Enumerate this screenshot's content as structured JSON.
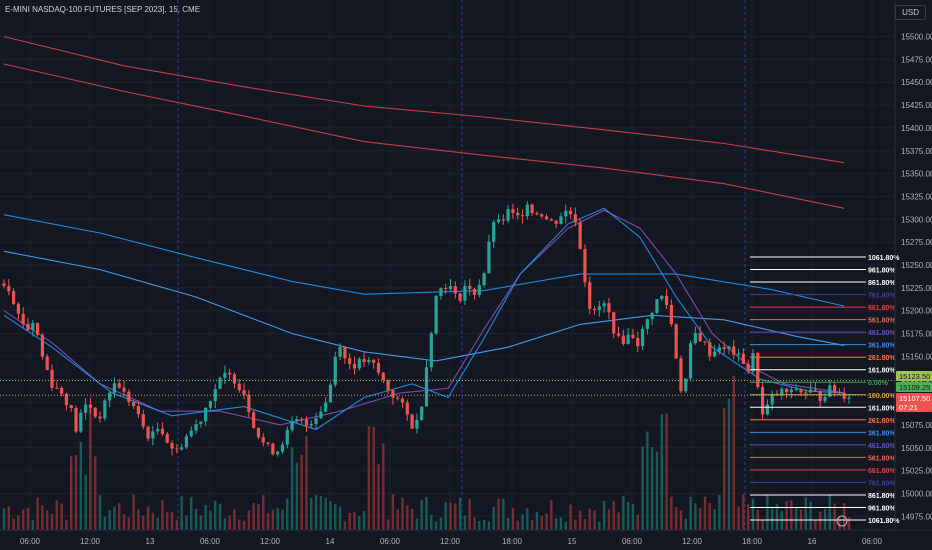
{
  "header": {
    "title": "E-MINI NASDAQ-100 FUTURES [SEP 2023], 15, CME",
    "currency": "USD"
  },
  "colors": {
    "background": "#131722",
    "grid": "#1e222d",
    "text": "#b2b5be",
    "up": "#26a69a",
    "down": "#ef5350",
    "vol_up": "#1b6b64",
    "vol_down": "#8e3434",
    "ma_red": "#d9434a",
    "ma_blue": "#2196f3",
    "ma_purple": "#8b4fc0",
    "ma_light_blue": "#4fa6ff",
    "session_line": "#2962ff",
    "dotted_green": "#9cc452",
    "dotted_orange": "#c9a35a"
  },
  "price_scale": {
    "labels": [
      "15500.00",
      "15475.00",
      "15450.00",
      "15425.00",
      "15400.00",
      "15375.00",
      "15350.00",
      "15325.00",
      "15300.00",
      "15275.00",
      "15250.00",
      "15225.00",
      "15200.00",
      "15175.00",
      "15150.00",
      "15125.00",
      "15100.00",
      "15075.00",
      "15050.00",
      "15025.00",
      "15000.00",
      "14975.00"
    ],
    "price_tags": [
      {
        "text": "15123.50",
        "bg": "#9cc452",
        "fg": "#131722"
      },
      {
        "text": "15109.25",
        "bg": "#4caf50",
        "fg": "#131722"
      },
      {
        "text": "15107.50",
        "bg": "#ef5350",
        "fg": "#ffffff"
      },
      {
        "text": "07:21",
        "bg": "#ef5350",
        "fg": "#ffffff"
      }
    ]
  },
  "time_scale": {
    "labels": [
      "06:00",
      "12:00",
      "13",
      "06:00",
      "12:00",
      "14",
      "06:00",
      "12:00",
      "18:00",
      "15",
      "06:00",
      "12:00",
      "18:00",
      "16",
      "06:00"
    ]
  },
  "fib_levels": [
    {
      "label": "1061.80%",
      "color": "#ffffff"
    },
    {
      "label": "961.80%",
      "color": "#ffffff"
    },
    {
      "label": "861.80%",
      "color": "#ffffff"
    },
    {
      "label": "761.80%",
      "color": "#3f3f9e"
    },
    {
      "label": "661.80%",
      "color": "#e04040"
    },
    {
      "label": "561.80%",
      "color": "#e86a5a"
    },
    {
      "label": "461.80%",
      "color": "#6a4fc7"
    },
    {
      "label": "361.80%",
      "color": "#3c8ee8"
    },
    {
      "label": "261.80%",
      "color": "#ff7043"
    },
    {
      "label": "161.80%",
      "color": "#ffffff"
    },
    {
      "label": "0.00%",
      "color": "#43a047"
    },
    {
      "label": "100.00%",
      "color": "#d9a441"
    },
    {
      "label": "161.80%",
      "color": "#ffffff"
    },
    {
      "label": "261.80%",
      "color": "#ff7043"
    },
    {
      "label": "361.80%",
      "color": "#3c8ee8"
    },
    {
      "label": "461.80%",
      "color": "#6a4fc7"
    },
    {
      "label": "561.80%",
      "color": "#e86a5a"
    },
    {
      "label": "661.80%",
      "color": "#e04040"
    },
    {
      "label": "761.80%",
      "color": "#3f3f9e"
    },
    {
      "label": "861.80%",
      "color": "#ffffff"
    },
    {
      "label": "961.80%",
      "color": "#ffffff"
    },
    {
      "label": "1061.80%",
      "color": "#ffffff"
    }
  ],
  "chart_data": {
    "type": "candlestick",
    "title": "E-MINI NASDAQ-100 FUTURES [SEP 2023], 15, CME",
    "ylim": [
      14960,
      15540
    ],
    "x_labels": [
      "06:00",
      "12:00",
      "13",
      "06:00",
      "12:00",
      "14",
      "06:00",
      "12:00",
      "18:00",
      "15",
      "06:00",
      "12:00",
      "18:00",
      "16",
      "06:00"
    ],
    "price_path": [
      [
        0,
        15230
      ],
      [
        5,
        15225
      ],
      [
        12,
        15195
      ],
      [
        20,
        15180
      ],
      [
        25,
        15190
      ],
      [
        32,
        15150
      ],
      [
        40,
        15120
      ],
      [
        48,
        15110
      ],
      [
        55,
        15095
      ],
      [
        60,
        15070
      ],
      [
        65,
        15090
      ],
      [
        70,
        15100
      ],
      [
        78,
        15080
      ],
      [
        85,
        15100
      ],
      [
        90,
        15120
      ],
      [
        96,
        15118
      ],
      [
        102,
        15105
      ],
      [
        108,
        15095
      ],
      [
        115,
        15075
      ],
      [
        122,
        15060
      ],
      [
        130,
        15075
      ],
      [
        137,
        15055
      ],
      [
        144,
        15045
      ],
      [
        150,
        15060
      ],
      [
        157,
        15070
      ],
      [
        163,
        15080
      ],
      [
        170,
        15100
      ],
      [
        178,
        15120
      ],
      [
        185,
        15130
      ],
      [
        192,
        15125
      ],
      [
        200,
        15110
      ],
      [
        207,
        15080
      ],
      [
        213,
        15060
      ],
      [
        220,
        15050
      ],
      [
        227,
        15045
      ],
      [
        233,
        15060
      ],
      [
        240,
        15075
      ],
      [
        245,
        15080
      ],
      [
        252,
        15075
      ],
      [
        260,
        15085
      ],
      [
        268,
        15100
      ],
      [
        275,
        15135
      ],
      [
        278,
        15180
      ],
      [
        282,
        15150
      ],
      [
        290,
        15140
      ],
      [
        300,
        15145
      ],
      [
        308,
        15140
      ],
      [
        315,
        15125
      ],
      [
        322,
        15110
      ],
      [
        330,
        15100
      ],
      [
        336,
        15085
      ],
      [
        342,
        15070
      ],
      [
        347,
        15090
      ],
      [
        352,
        15140
      ],
      [
        356,
        15180
      ],
      [
        360,
        15215
      ],
      [
        366,
        15230
      ],
      [
        372,
        15225
      ],
      [
        378,
        15210
      ],
      [
        385,
        15230
      ],
      [
        390,
        15215
      ],
      [
        396,
        15230
      ],
      [
        401,
        15245
      ],
      [
        405,
        15280
      ],
      [
        409,
        15305
      ],
      [
        412,
        15295
      ],
      [
        416,
        15300
      ],
      [
        421,
        15310
      ],
      [
        426,
        15300
      ],
      [
        431,
        15305
      ],
      [
        436,
        15320
      ],
      [
        441,
        15305
      ],
      [
        446,
        15310
      ],
      [
        452,
        15300
      ],
      [
        458,
        15295
      ],
      [
        464,
        15305
      ],
      [
        470,
        15310
      ],
      [
        476,
        15300
      ],
      [
        480,
        15270
      ],
      [
        484,
        15235
      ],
      [
        488,
        15205
      ],
      [
        493,
        15195
      ],
      [
        498,
        15210
      ],
      [
        503,
        15200
      ],
      [
        508,
        15180
      ],
      [
        513,
        15165
      ],
      [
        518,
        15170
      ],
      [
        523,
        15175
      ],
      [
        528,
        15165
      ],
      [
        533,
        15180
      ],
      [
        538,
        15195
      ],
      [
        543,
        15210
      ],
      [
        548,
        15215
      ],
      [
        553,
        15205
      ],
      [
        556,
        15185
      ],
      [
        559,
        15160
      ],
      [
        562,
        15130
      ],
      [
        566,
        15100
      ],
      [
        570,
        15150
      ],
      [
        575,
        15175
      ],
      [
        580,
        15170
      ],
      [
        585,
        15160
      ],
      [
        590,
        15150
      ],
      [
        595,
        15165
      ],
      [
        600,
        15155
      ],
      [
        605,
        15160
      ],
      [
        610,
        15150
      ],
      [
        616,
        15145
      ],
      [
        620,
        15135
      ],
      [
        624,
        15150
      ],
      [
        628,
        15120
      ],
      [
        632,
        15085
      ],
      [
        636,
        15095
      ],
      [
        640,
        15105
      ],
      [
        645,
        15110
      ],
      [
        650,
        15112
      ],
      [
        655,
        15108
      ],
      [
        660,
        15115
      ],
      [
        665,
        15110
      ],
      [
        670,
        15112
      ],
      [
        675,
        15110
      ],
      [
        680,
        15105
      ],
      [
        685,
        15112
      ],
      [
        690,
        15115
      ],
      [
        695,
        15110
      ],
      [
        700,
        15108
      ],
      [
        704,
        15107.5
      ]
    ],
    "moving_averages": [
      {
        "color_key": "ma_red",
        "points": [
          [
            0,
            15500
          ],
          [
            100,
            15468
          ],
          [
            200,
            15445
          ],
          [
            300,
            15424
          ],
          [
            400,
            15412
          ],
          [
            500,
            15398
          ],
          [
            600,
            15383
          ],
          [
            700,
            15362
          ]
        ]
      },
      {
        "color_key": "ma_red",
        "points": [
          [
            0,
            15470
          ],
          [
            100,
            15440
          ],
          [
            200,
            15413
          ],
          [
            300,
            15385
          ],
          [
            400,
            15370
          ],
          [
            500,
            15356
          ],
          [
            600,
            15339
          ],
          [
            700,
            15312
          ]
        ]
      },
      {
        "color_key": "ma_blue",
        "points": [
          [
            0,
            15305
          ],
          [
            80,
            15285
          ],
          [
            160,
            15258
          ],
          [
            240,
            15232
          ],
          [
            300,
            15218
          ],
          [
            400,
            15222
          ],
          [
            480,
            15240
          ],
          [
            560,
            15240
          ],
          [
            640,
            15223
          ],
          [
            700,
            15205
          ]
        ]
      },
      {
        "color_key": "ma_light_blue",
        "points": [
          [
            0,
            15265
          ],
          [
            80,
            15245
          ],
          [
            160,
            15215
          ],
          [
            240,
            15175
          ],
          [
            300,
            15155
          ],
          [
            360,
            15145
          ],
          [
            420,
            15160
          ],
          [
            480,
            15185
          ],
          [
            540,
            15195
          ],
          [
            600,
            15190
          ],
          [
            660,
            15172
          ],
          [
            700,
            15162
          ]
        ]
      },
      {
        "color_key": "ma_purple",
        "points": [
          [
            0,
            15200
          ],
          [
            40,
            15165
          ],
          [
            80,
            15120
          ],
          [
            130,
            15090
          ],
          [
            180,
            15090
          ],
          [
            230,
            15075
          ],
          [
            280,
            15090
          ],
          [
            330,
            15110
          ],
          [
            370,
            15115
          ],
          [
            400,
            15180
          ],
          [
            430,
            15240
          ],
          [
            470,
            15290
          ],
          [
            500,
            15310
          ],
          [
            530,
            15290
          ],
          [
            560,
            15240
          ],
          [
            590,
            15175
          ],
          [
            620,
            15140
          ],
          [
            650,
            15120
          ],
          [
            700,
            15110
          ]
        ]
      },
      {
        "color_key": "ma_blue",
        "points": [
          [
            0,
            15195
          ],
          [
            40,
            15160
          ],
          [
            90,
            15110
          ],
          [
            140,
            15085
          ],
          [
            200,
            15095
          ],
          [
            260,
            15070
          ],
          [
            300,
            15105
          ],
          [
            340,
            15120
          ],
          [
            370,
            15105
          ],
          [
            400,
            15170
          ],
          [
            430,
            15240
          ],
          [
            470,
            15295
          ],
          [
            500,
            15312
          ],
          [
            530,
            15280
          ],
          [
            560,
            15215
          ],
          [
            590,
            15160
          ],
          [
            630,
            15125
          ],
          [
            670,
            15112
          ],
          [
            700,
            15110
          ]
        ]
      }
    ],
    "dotted_levels": [
      {
        "price": 15123.5,
        "color_key": "dotted_green"
      },
      {
        "price": 15107.5,
        "color_key": "dotted_orange"
      }
    ],
    "last_price": 15107.5
  }
}
